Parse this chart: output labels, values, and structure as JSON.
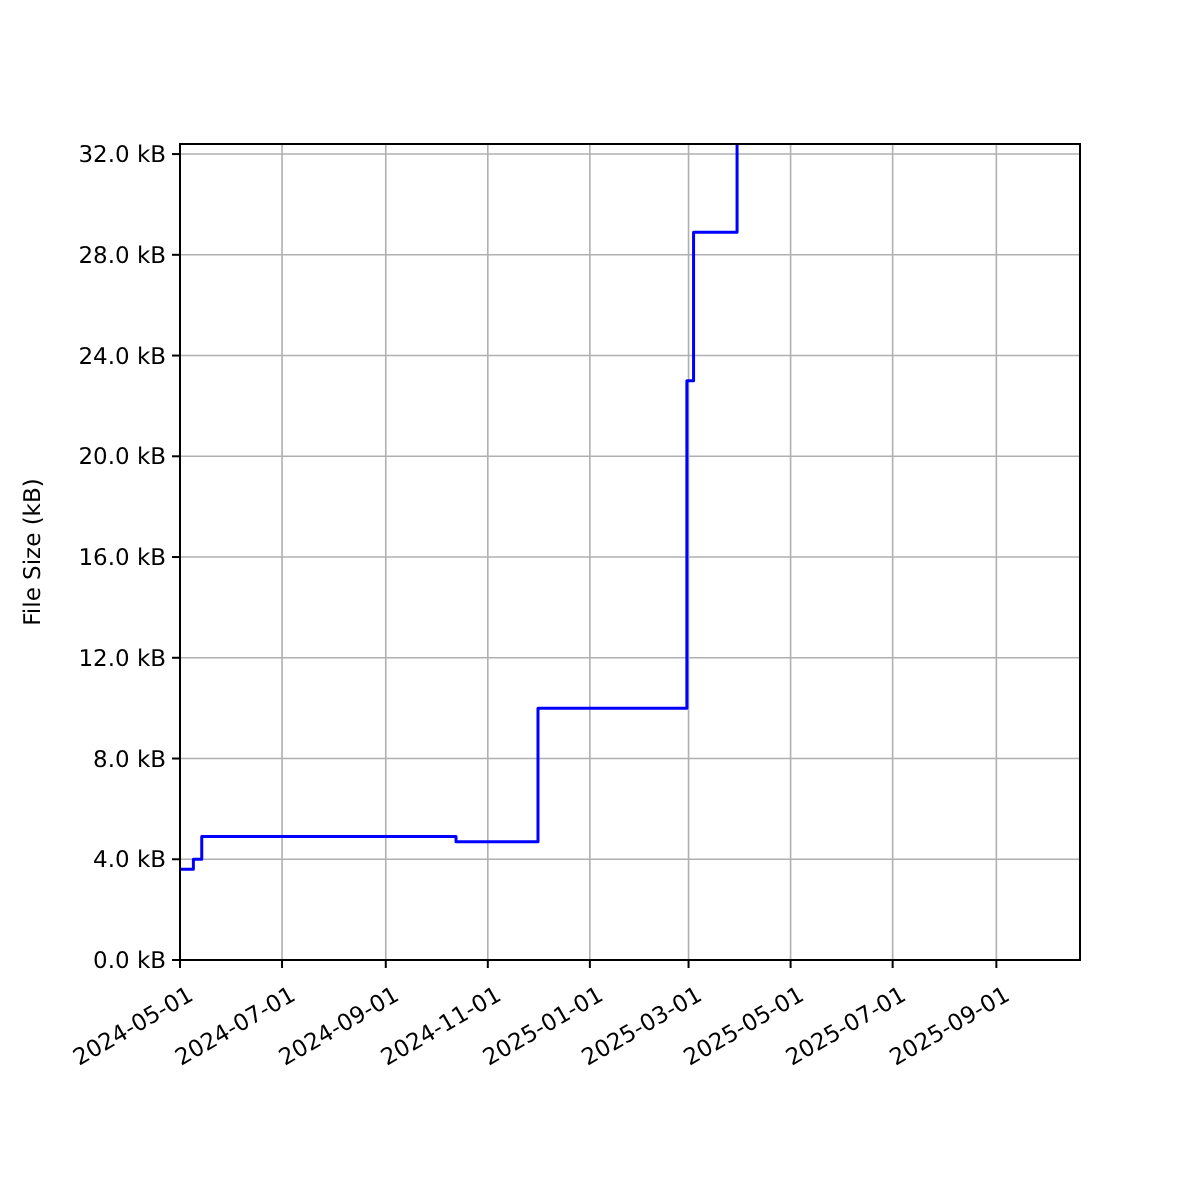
{
  "chart_data": {
    "type": "step",
    "ylabel": "File Size (kB)",
    "x": [
      "2024-05-01",
      "2024-05-09",
      "2024-05-14",
      "2024-10-13",
      "2024-12-01",
      "2025-02-28",
      "2025-03-02",
      "2025-03-04",
      "2025-03-30",
      "2025-03-30"
    ],
    "series": [
      {
        "color": "#0000ff",
        "values": [
          3.6,
          4.0,
          4.9,
          4.7,
          10.0,
          23.0,
          23.0,
          28.9,
          28.9,
          32.4
        ]
      }
    ],
    "xlim": [
      "2024-05-01",
      "2025-10-21"
    ],
    "xticks": [
      "2024-05-01",
      "2024-07-01",
      "2024-09-01",
      "2024-11-01",
      "2025-01-01",
      "2025-03-01",
      "2025-05-01",
      "2025-07-01",
      "2025-09-01"
    ],
    "ylim": [
      0,
      32.4
    ],
    "yticks": [
      {
        "value": 0,
        "label": "0.0 kB"
      },
      {
        "value": 4,
        "label": "4.0 kB"
      },
      {
        "value": 8,
        "label": "8.0 kB"
      },
      {
        "value": 12,
        "label": "12.0 kB"
      },
      {
        "value": 16,
        "label": "16.0 kB"
      },
      {
        "value": 20,
        "label": "20.0 kB"
      },
      {
        "value": 24,
        "label": "24.0 kB"
      },
      {
        "value": 28,
        "label": "28.0 kB"
      },
      {
        "value": 32,
        "label": "32.0 kB"
      }
    ],
    "grid": true
  }
}
